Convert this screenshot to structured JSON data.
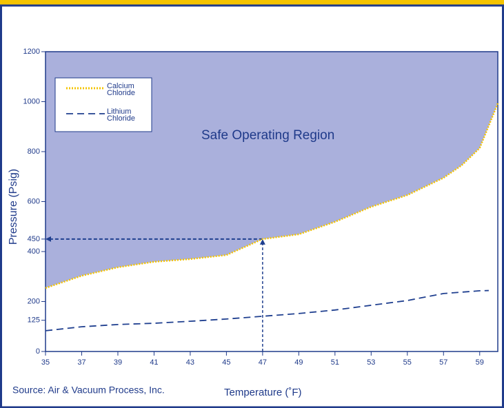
{
  "chart_data": {
    "type": "line",
    "ylabel": "Pressure (Psig)",
    "xlabel": "Temperature (˚F)",
    "annotation": "Safe Operating Region",
    "source": "Source: Air & Vacuum Process, Inc.",
    "xlim": [
      35,
      60
    ],
    "xticks": [
      35,
      37,
      39,
      41,
      43,
      45,
      47,
      49,
      51,
      53,
      55,
      57,
      59
    ],
    "ylim": [
      0,
      1200
    ],
    "yticks": [
      0,
      125,
      200,
      400,
      450,
      600,
      800,
      1000,
      1200
    ],
    "fill_color": "#aab0dc",
    "reference": {
      "x": 47,
      "y": 450
    },
    "series": [
      {
        "name": "Calcium Chloride",
        "color": "#f5c400",
        "style": "dotted",
        "x": [
          35,
          37,
          39,
          41,
          43,
          45,
          47,
          49,
          51,
          53,
          55,
          57,
          58,
          59,
          60
        ],
        "values": [
          254,
          303,
          337,
          359,
          370,
          386,
          450,
          469,
          519,
          579,
          626,
          695,
          745,
          814,
          993
        ]
      },
      {
        "name": "Lithium Chloride",
        "color": "#1f3f8f",
        "style": "dashed",
        "x": [
          35,
          37,
          39,
          41,
          43,
          45,
          47,
          49,
          51,
          53,
          55,
          57,
          59,
          59.5
        ],
        "values": [
          83,
          99,
          108,
          113,
          121,
          130,
          141,
          152,
          166,
          185,
          204,
          232,
          243,
          244
        ]
      }
    ]
  }
}
